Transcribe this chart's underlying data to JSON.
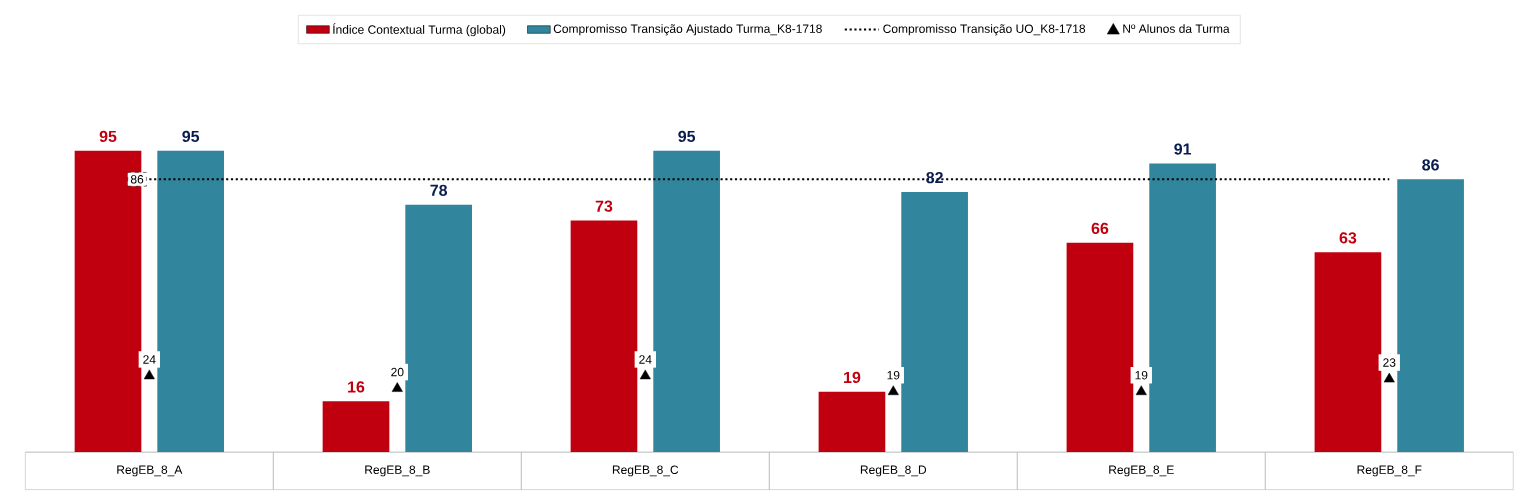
{
  "chart_data": {
    "type": "bar",
    "categories": [
      "RegEB_8_A",
      "RegEB_8_B",
      "RegEB_8_C",
      "RegEB_8_D",
      "RegEB_8_E",
      "RegEB_8_F"
    ],
    "series": [
      {
        "name": "Índice Contextual Turma (global)",
        "color": "#c0000f",
        "values": [
          95,
          16,
          73,
          19,
          66,
          63
        ]
      },
      {
        "name": "Compromisso Transição Ajustado Turma_K8-1718",
        "color": "#31859c",
        "values": [
          95,
          78,
          95,
          82,
          91,
          86
        ]
      },
      {
        "name": "Compromisso Transição UO_K8-1718",
        "type": "line",
        "color": "#000000",
        "line_style": "dotted",
        "marker": "none",
        "values": [
          86,
          86,
          86,
          86,
          86,
          86
        ],
        "value_labels": [
          "86",
          null,
          null,
          null,
          null,
          null
        ]
      },
      {
        "name": "Nº Alunos da Turma",
        "type": "scatter",
        "color": "#000000",
        "marker": "triangle",
        "values": [
          24,
          20,
          24,
          19,
          19,
          23
        ]
      }
    ],
    "tick_labels": "x",
    "data_labels": true,
    "legend": "top",
    "grid": false
  }
}
